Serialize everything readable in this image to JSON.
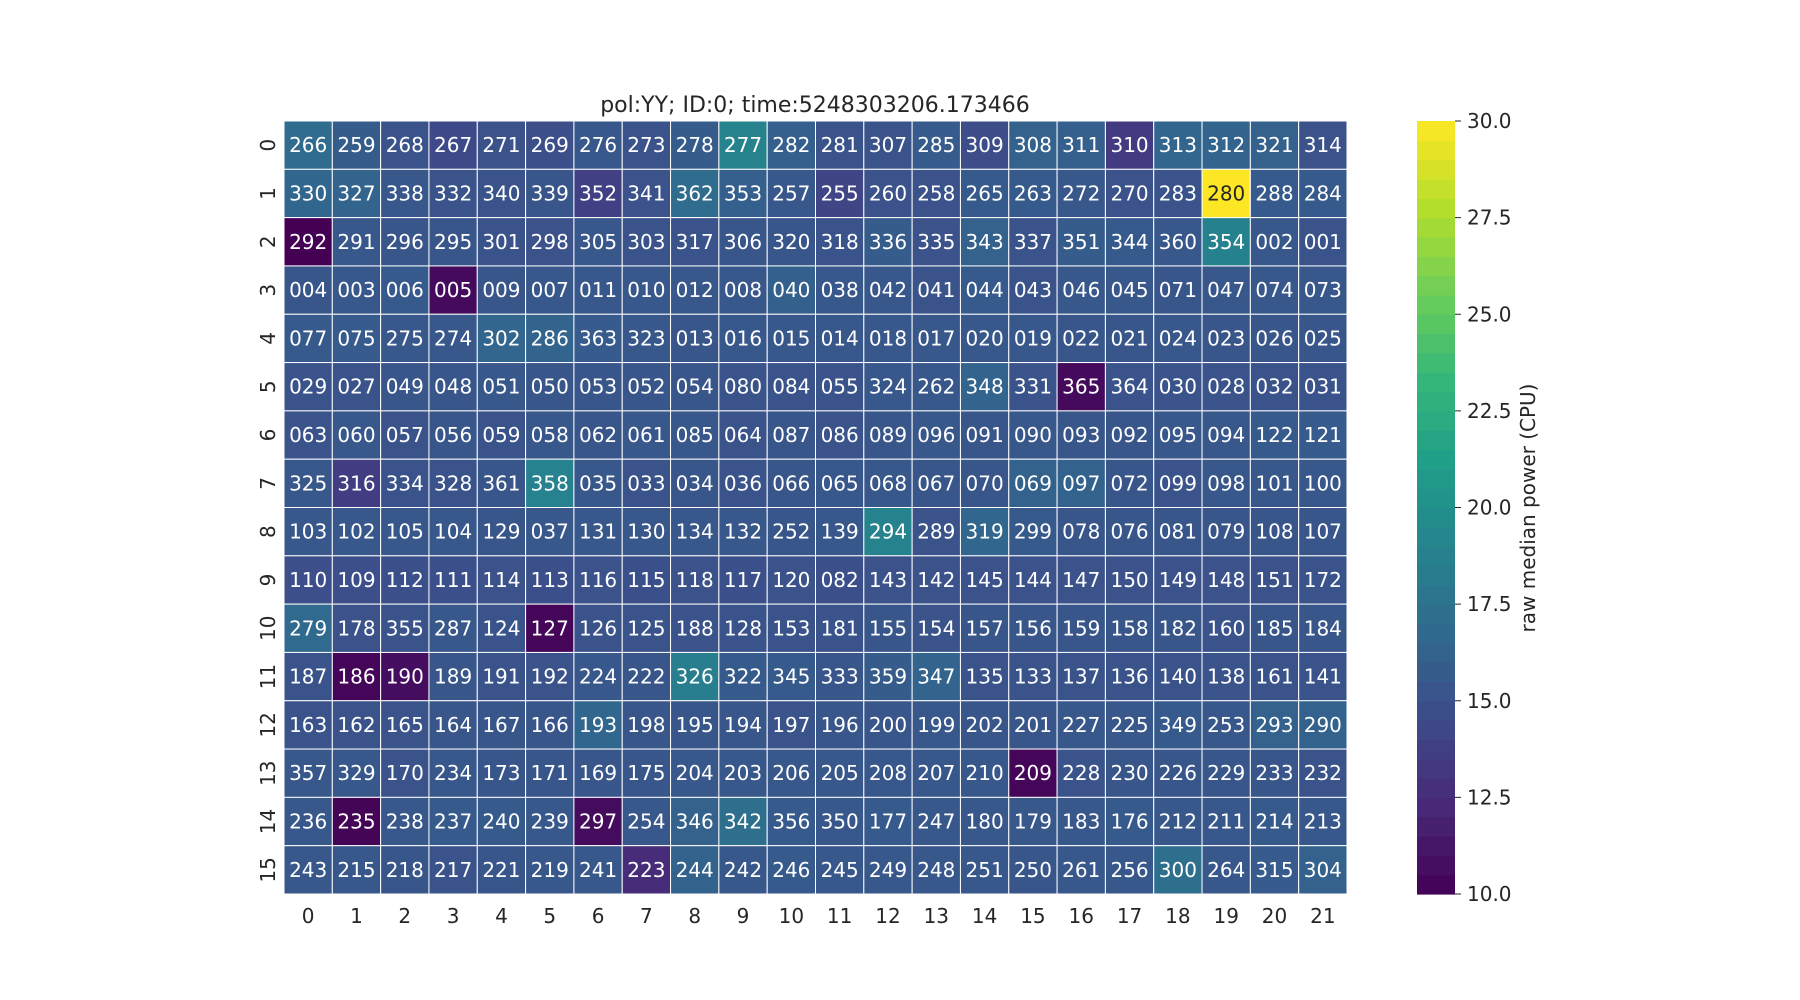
{
  "chart_data": {
    "type": "heatmap",
    "title": "pol:YY; ID:0; time:5248303206.173466",
    "xlabel": "",
    "ylabel": "",
    "x_ticks": [
      "0",
      "1",
      "2",
      "3",
      "4",
      "5",
      "6",
      "7",
      "8",
      "9",
      "10",
      "11",
      "12",
      "13",
      "14",
      "15",
      "16",
      "17",
      "18",
      "19",
      "20",
      "21"
    ],
    "y_ticks": [
      "0",
      "1",
      "2",
      "3",
      "4",
      "5",
      "6",
      "7",
      "8",
      "9",
      "10",
      "11",
      "12",
      "13",
      "14",
      "15"
    ],
    "annotations": [
      [
        "266",
        "259",
        "268",
        "267",
        "271",
        "269",
        "276",
        "273",
        "278",
        "277",
        "282",
        "281",
        "307",
        "285",
        "309",
        "308",
        "311",
        "310",
        "313",
        "312",
        "321",
        "314"
      ],
      [
        "330",
        "327",
        "338",
        "332",
        "340",
        "339",
        "352",
        "341",
        "362",
        "353",
        "257",
        "255",
        "260",
        "258",
        "265",
        "263",
        "272",
        "270",
        "283",
        "280",
        "288",
        "284"
      ],
      [
        "292",
        "291",
        "296",
        "295",
        "301",
        "298",
        "305",
        "303",
        "317",
        "306",
        "320",
        "318",
        "336",
        "335",
        "343",
        "337",
        "351",
        "344",
        "360",
        "354",
        "002",
        "001"
      ],
      [
        "004",
        "003",
        "006",
        "005",
        "009",
        "007",
        "011",
        "010",
        "012",
        "008",
        "040",
        "038",
        "042",
        "041",
        "044",
        "043",
        "046",
        "045",
        "071",
        "047",
        "074",
        "073"
      ],
      [
        "077",
        "075",
        "275",
        "274",
        "302",
        "286",
        "363",
        "323",
        "013",
        "016",
        "015",
        "014",
        "018",
        "017",
        "020",
        "019",
        "022",
        "021",
        "024",
        "023",
        "026",
        "025"
      ],
      [
        "029",
        "027",
        "049",
        "048",
        "051",
        "050",
        "053",
        "052",
        "054",
        "080",
        "084",
        "055",
        "324",
        "262",
        "348",
        "331",
        "365",
        "364",
        "030",
        "028",
        "032",
        "031"
      ],
      [
        "063",
        "060",
        "057",
        "056",
        "059",
        "058",
        "062",
        "061",
        "085",
        "064",
        "087",
        "086",
        "089",
        "096",
        "091",
        "090",
        "093",
        "092",
        "095",
        "094",
        "122",
        "121"
      ],
      [
        "325",
        "316",
        "334",
        "328",
        "361",
        "358",
        "035",
        "033",
        "034",
        "036",
        "066",
        "065",
        "068",
        "067",
        "070",
        "069",
        "097",
        "072",
        "099",
        "098",
        "101",
        "100"
      ],
      [
        "103",
        "102",
        "105",
        "104",
        "129",
        "037",
        "131",
        "130",
        "134",
        "132",
        "252",
        "139",
        "294",
        "289",
        "319",
        "299",
        "078",
        "076",
        "081",
        "079",
        "108",
        "107"
      ],
      [
        "110",
        "109",
        "112",
        "111",
        "114",
        "113",
        "116",
        "115",
        "118",
        "117",
        "120",
        "082",
        "143",
        "142",
        "145",
        "144",
        "147",
        "150",
        "149",
        "148",
        "151",
        "172"
      ],
      [
        "279",
        "178",
        "355",
        "287",
        "124",
        "127",
        "126",
        "125",
        "188",
        "128",
        "153",
        "181",
        "155",
        "154",
        "157",
        "156",
        "159",
        "158",
        "182",
        "160",
        "185",
        "184"
      ],
      [
        "187",
        "186",
        "190",
        "189",
        "191",
        "192",
        "224",
        "222",
        "326",
        "322",
        "345",
        "333",
        "359",
        "347",
        "135",
        "133",
        "137",
        "136",
        "140",
        "138",
        "161",
        "141"
      ],
      [
        "163",
        "162",
        "165",
        "164",
        "167",
        "166",
        "193",
        "198",
        "195",
        "194",
        "197",
        "196",
        "200",
        "199",
        "202",
        "201",
        "227",
        "225",
        "349",
        "253",
        "293",
        "290"
      ],
      [
        "357",
        "329",
        "170",
        "234",
        "173",
        "171",
        "169",
        "175",
        "204",
        "203",
        "206",
        "205",
        "208",
        "207",
        "210",
        "209",
        "228",
        "230",
        "226",
        "229",
        "233",
        "232"
      ],
      [
        "236",
        "235",
        "238",
        "237",
        "240",
        "239",
        "297",
        "254",
        "346",
        "342",
        "356",
        "350",
        "177",
        "247",
        "180",
        "179",
        "183",
        "176",
        "212",
        "211",
        "214",
        "213"
      ],
      [
        "243",
        "215",
        "218",
        "217",
        "221",
        "219",
        "241",
        "223",
        "244",
        "242",
        "246",
        "245",
        "249",
        "248",
        "251",
        "250",
        "261",
        "256",
        "300",
        "264",
        "315",
        "304"
      ]
    ],
    "values": [
      [
        17.0,
        15.8,
        15.2,
        14.4,
        15.0,
        14.8,
        15.4,
        15.1,
        15.8,
        19.0,
        16.0,
        15.2,
        15.1,
        15.7,
        14.7,
        16.2,
        16.0,
        13.4,
        16.5,
        16.4,
        16.2,
        15.0
      ],
      [
        16.6,
        16.4,
        15.4,
        15.2,
        15.2,
        15.3,
        13.8,
        15.0,
        17.0,
        16.0,
        15.4,
        14.1,
        15.0,
        15.0,
        15.6,
        15.6,
        15.4,
        15.0,
        15.2,
        30.0,
        15.6,
        15.6
      ],
      [
        10.0,
        15.5,
        15.3,
        15.3,
        15.1,
        15.0,
        15.4,
        15.1,
        15.2,
        15.3,
        15.3,
        15.2,
        15.8,
        15.0,
        16.2,
        15.2,
        15.8,
        15.6,
        15.5,
        18.8,
        15.5,
        15.1
      ],
      [
        15.3,
        15.4,
        15.6,
        10.5,
        15.3,
        15.5,
        15.4,
        15.4,
        15.4,
        15.5,
        16.1,
        15.4,
        15.5,
        15.1,
        15.6,
        15.2,
        15.4,
        15.5,
        15.3,
        15.4,
        15.4,
        15.4
      ],
      [
        15.6,
        15.7,
        15.5,
        15.4,
        16.5,
        16.4,
        15.7,
        15.5,
        15.3,
        15.4,
        15.4,
        15.4,
        15.5,
        15.5,
        15.5,
        15.4,
        15.3,
        15.3,
        15.5,
        15.3,
        15.3,
        15.3
      ],
      [
        15.2,
        15.2,
        15.3,
        15.3,
        15.5,
        15.3,
        15.3,
        15.3,
        15.3,
        15.2,
        15.2,
        15.2,
        15.4,
        15.4,
        16.4,
        15.2,
        10.5,
        15.2,
        15.2,
        15.2,
        15.2,
        15.2
      ],
      [
        15.2,
        15.4,
        15.2,
        15.3,
        15.2,
        15.4,
        15.3,
        15.4,
        15.4,
        15.2,
        15.3,
        15.2,
        15.3,
        15.4,
        15.3,
        15.4,
        15.3,
        15.3,
        15.4,
        15.5,
        15.6,
        15.7
      ],
      [
        15.4,
        13.5,
        15.2,
        15.2,
        15.3,
        18.9,
        15.4,
        15.2,
        15.3,
        15.2,
        15.3,
        15.4,
        15.4,
        15.3,
        15.3,
        16.3,
        16.3,
        15.3,
        15.2,
        15.4,
        15.5,
        15.5
      ],
      [
        15.4,
        15.4,
        15.4,
        15.4,
        15.3,
        15.4,
        15.4,
        15.4,
        15.4,
        15.4,
        15.3,
        15.4,
        19.0,
        15.2,
        16.6,
        15.6,
        15.3,
        15.3,
        15.3,
        15.3,
        15.3,
        15.3
      ],
      [
        14.8,
        14.8,
        14.9,
        14.9,
        15.0,
        14.9,
        15.0,
        14.9,
        15.0,
        14.9,
        15.0,
        14.9,
        15.0,
        15.0,
        15.0,
        15.0,
        15.0,
        15.0,
        15.0,
        15.0,
        15.0,
        15.1
      ],
      [
        16.8,
        15.0,
        15.1,
        15.5,
        15.2,
        10.3,
        15.1,
        15.2,
        15.1,
        15.2,
        15.2,
        15.2,
        15.3,
        15.2,
        15.3,
        15.3,
        15.3,
        15.3,
        15.3,
        15.2,
        15.3,
        15.3
      ],
      [
        15.1,
        10.3,
        10.7,
        15.3,
        15.2,
        15.2,
        15.4,
        15.3,
        18.5,
        15.6,
        15.6,
        15.3,
        15.8,
        16.4,
        15.2,
        15.2,
        15.2,
        15.2,
        15.2,
        15.2,
        15.2,
        15.2
      ],
      [
        15.2,
        15.2,
        15.2,
        15.3,
        15.3,
        15.3,
        16.6,
        15.3,
        15.3,
        15.3,
        15.2,
        15.3,
        15.3,
        15.4,
        15.3,
        15.3,
        15.4,
        15.4,
        15.6,
        15.5,
        16.2,
        16.3
      ],
      [
        15.4,
        15.5,
        15.2,
        15.4,
        15.3,
        15.3,
        15.3,
        15.3,
        15.4,
        15.4,
        15.4,
        15.4,
        15.4,
        15.4,
        15.4,
        10.3,
        15.2,
        15.3,
        15.3,
        15.3,
        15.3,
        15.1
      ],
      [
        15.5,
        10.2,
        15.5,
        15.6,
        15.6,
        15.5,
        10.6,
        15.5,
        16.2,
        17.3,
        15.6,
        15.4,
        15.6,
        15.5,
        15.5,
        15.5,
        15.5,
        15.6,
        15.5,
        15.4,
        15.6,
        15.4
      ],
      [
        15.5,
        15.4,
        15.3,
        15.2,
        15.3,
        15.4,
        15.5,
        12.5,
        16.3,
        15.5,
        15.6,
        15.4,
        15.5,
        15.4,
        15.4,
        15.3,
        15.5,
        15.4,
        17.3,
        15.5,
        15.7,
        16.2
      ]
    ],
    "vmin": 10.0,
    "vmax": 30.0,
    "colormap": "viridis",
    "colorbar": {
      "label": "raw median power (CPU)",
      "ticks": [
        "10.0",
        "12.5",
        "15.0",
        "17.5",
        "20.0",
        "22.5",
        "25.0",
        "27.5",
        "30.0"
      ],
      "tick_values": [
        10.0,
        12.5,
        15.0,
        17.5,
        20.0,
        22.5,
        25.0,
        27.5,
        30.0
      ]
    },
    "grid": true
  }
}
